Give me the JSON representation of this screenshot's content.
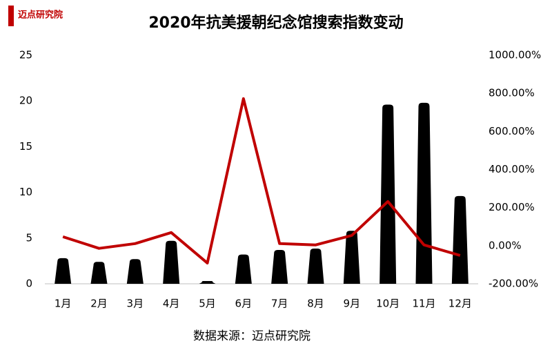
{
  "logo": {
    "text": "迈点研究院"
  },
  "chart_data": {
    "type": "bar",
    "title": "2020年抗美援朝纪念馆搜索指数变动",
    "categories": [
      "1月",
      "2月",
      "3月",
      "4月",
      "5月",
      "6月",
      "7月",
      "8月",
      "9月",
      "10月",
      "11月",
      "12月"
    ],
    "series": [
      {
        "color": "#000000",
        "values": [
          2.8,
          2.4,
          2.7,
          4.7,
          0.3,
          3.2,
          3.7,
          3.85,
          5.8,
          19.6,
          19.8,
          9.6
        ]
      },
      {
        "type": "line",
        "axis": "y2",
        "color": "#c00000",
        "values": [
          47,
          -14,
          11,
          69,
          -91,
          772,
          11,
          4,
          54,
          232,
          4,
          -51
        ]
      }
    ],
    "ylim": [
      0,
      25
    ],
    "yticks": [
      0,
      5,
      10,
      15,
      20,
      25
    ],
    "y2lim": [
      -200,
      1000
    ],
    "y2ticks": [
      {
        "value": -200,
        "label": "-200.00%"
      },
      {
        "value": 0,
        "label": "0.00%"
      },
      {
        "value": 200,
        "label": "200.00%"
      },
      {
        "value": 400,
        "label": "400.00%"
      },
      {
        "value": 600,
        "label": "600.00%"
      },
      {
        "value": 800,
        "label": "800.00%"
      },
      {
        "value": 1000,
        "label": "1000.00%"
      }
    ],
    "source": "数据来源：迈点研究院"
  }
}
